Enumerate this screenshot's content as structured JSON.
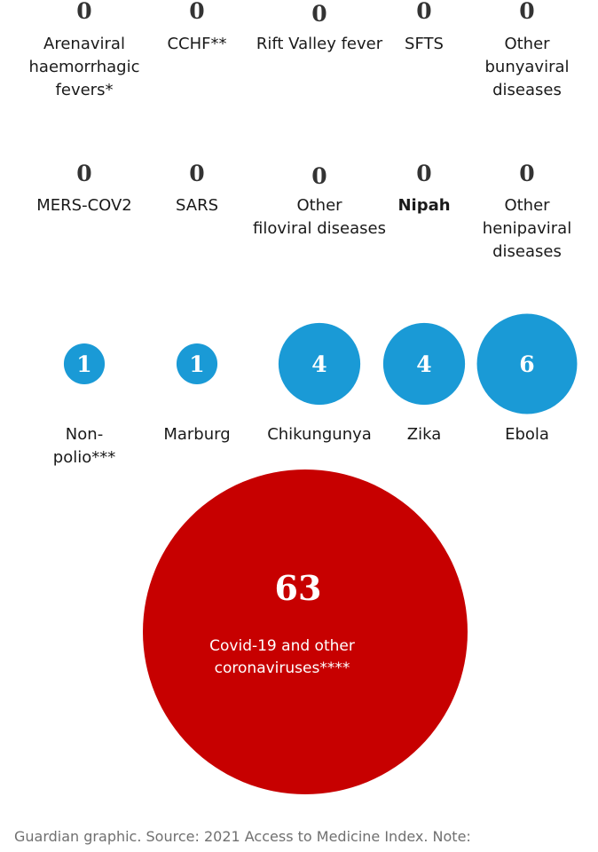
{
  "chart_data": {
    "type": "bubble",
    "colors": {
      "small": "#1a9ad6",
      "large": "#c70000",
      "zero_text": "#333333"
    },
    "items": [
      {
        "label": "Arenaviral\nhaemorrhagic\nfevers*",
        "value": 0
      },
      {
        "label": "CCHF**",
        "value": 0
      },
      {
        "label": "Rift Valley fever",
        "value": 0
      },
      {
        "label": "SFTS",
        "value": 0
      },
      {
        "label": "Other\nbunyaviral\ndiseases",
        "value": 0
      },
      {
        "label": "MERS-COV2",
        "value": 0
      },
      {
        "label": "SARS",
        "value": 0
      },
      {
        "label": "Other\nfiloviral diseases",
        "value": 0
      },
      {
        "label": "Nipah",
        "value": 0
      },
      {
        "label": "Other\nhenipaviral\ndiseases",
        "value": 0
      },
      {
        "label": "Non-\npolio***",
        "value": 1
      },
      {
        "label": "Marburg",
        "value": 1
      },
      {
        "label": "Chikungunya",
        "value": 4
      },
      {
        "label": "Zika",
        "value": 4
      },
      {
        "label": "Ebola",
        "value": 6
      },
      {
        "label": "Covid-19 and other\ncoronaviruses****",
        "value": 63
      }
    ]
  },
  "source": "Guardian graphic. Source: 2021 Access to Medicine Index. Note:"
}
